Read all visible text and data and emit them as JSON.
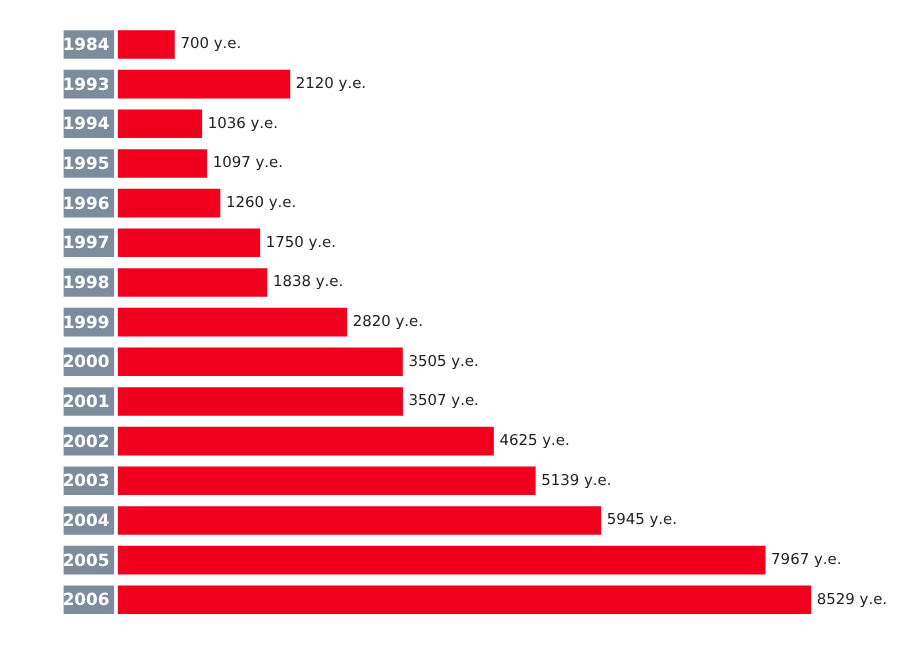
{
  "chart_data": {
    "type": "bar",
    "orientation": "horizontal",
    "categories": [
      "1984",
      "1993",
      "1994",
      "1995",
      "1996",
      "1997",
      "1998",
      "1999",
      "2000",
      "2001",
      "2002",
      "2003",
      "2004",
      "2005",
      "2006"
    ],
    "values": [
      700,
      2120,
      1036,
      1097,
      1260,
      1750,
      1838,
      2820,
      3505,
      3507,
      4625,
      5139,
      5945,
      7967,
      8529
    ],
    "value_labels": [
      "700 у.е.",
      "2120 у.е.",
      "1036 у.е.",
      "1097 у.е.",
      "1260 у.е.",
      "1750 у.е.",
      "1838 у.е.",
      "2820 у.е.",
      "3505 у.е.",
      "3507 у.е.",
      "4625 у.е.",
      "5139 у.е.",
      "5945 у.е.",
      "7967 у.е.",
      "8529 у.е."
    ],
    "color": "#f0001c",
    "tick_labels": "y"
  }
}
